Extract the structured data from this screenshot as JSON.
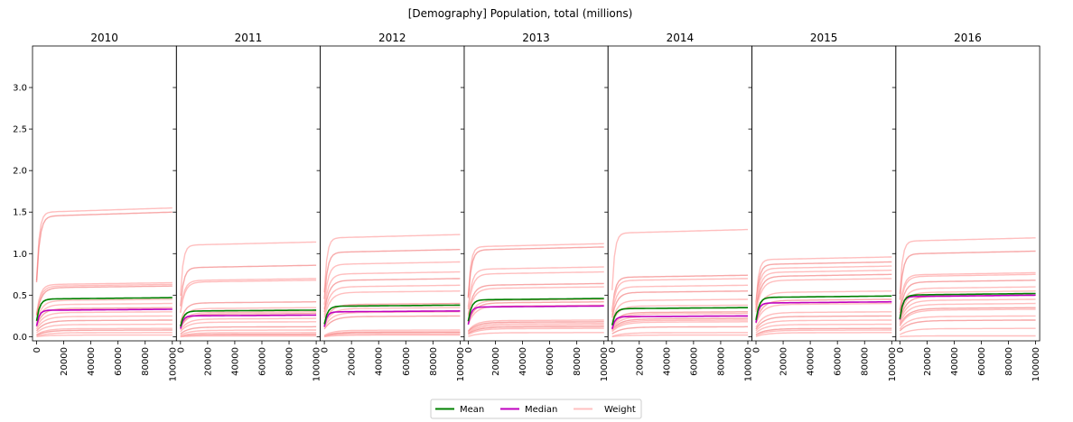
{
  "chart_data": {
    "type": "line",
    "title": "[Demography] Population, total (millions)",
    "panels": [
      "2010",
      "2011",
      "2012",
      "2013",
      "2014",
      "2015",
      "2016"
    ],
    "x_ticks": [
      "0",
      "20000",
      "40000",
      "60000",
      "80000",
      "100000"
    ],
    "y_ticks": [
      "0.0",
      "0.5",
      "1.0",
      "1.5",
      "2.0",
      "2.5",
      "3.0"
    ],
    "xlim": [
      -3000,
      103000
    ],
    "ylim": [
      -0.05,
      3.5
    ],
    "colors": {
      "mean": "#008000",
      "median": "#bf00bf",
      "weight": "#ffb3b3",
      "weight_dark": "#f06060"
    },
    "legend": [
      {
        "label": "Mean",
        "color": "#008000"
      },
      {
        "label": "Median",
        "color": "#bf00bf"
      },
      {
        "label": "Weight",
        "color": "#ffc0c0"
      }
    ],
    "legend_position": "bottom-center",
    "x_range": [
      0,
      100000
    ],
    "series": [
      {
        "panel": "2010",
        "mean": 0.47,
        "median": 0.33,
        "weights": [
          1.55,
          1.5,
          0.65,
          0.63,
          0.61,
          0.45,
          0.4,
          0.35,
          0.3,
          0.25,
          0.2,
          0.15,
          0.1,
          0.08,
          0.05,
          0.02
        ]
      },
      {
        "panel": "2011",
        "mean": 0.32,
        "median": 0.26,
        "weights": [
          1.14,
          0.86,
          0.7,
          0.68,
          0.42,
          0.35,
          0.3,
          0.28,
          0.22,
          0.18,
          0.12,
          0.08,
          0.05,
          0.03,
          0.02,
          0.01
        ]
      },
      {
        "panel": "2012",
        "mean": 0.38,
        "median": 0.31,
        "weights": [
          1.23,
          1.05,
          0.9,
          0.78,
          0.7,
          0.62,
          0.55,
          0.4,
          0.35,
          0.3,
          0.25,
          0.08,
          0.06,
          0.05,
          0.03,
          0.02
        ]
      },
      {
        "panel": "2013",
        "mean": 0.46,
        "median": 0.37,
        "weights": [
          1.12,
          1.08,
          0.84,
          0.78,
          0.64,
          0.6,
          0.45,
          0.42,
          0.38,
          0.2,
          0.18,
          0.16,
          0.14,
          0.12,
          0.1,
          0.05
        ]
      },
      {
        "panel": "2014",
        "mean": 0.35,
        "median": 0.25,
        "weights": [
          1.29,
          0.74,
          0.7,
          0.62,
          0.55,
          0.45,
          0.38,
          0.3,
          0.28,
          0.25,
          0.22,
          0.2,
          0.18,
          0.12,
          0.05,
          0.02
        ]
      },
      {
        "panel": "2015",
        "mean": 0.49,
        "median": 0.42,
        "weights": [
          0.96,
          0.9,
          0.85,
          0.8,
          0.75,
          0.7,
          0.55,
          0.45,
          0.4,
          0.3,
          0.25,
          0.2,
          0.15,
          0.1,
          0.08,
          0.05
        ]
      },
      {
        "panel": "2016",
        "mean": 0.52,
        "median": 0.5,
        "weights": [
          1.19,
          1.03,
          0.77,
          0.75,
          0.68,
          0.6,
          0.55,
          0.5,
          0.45,
          0.4,
          0.35,
          0.33,
          0.25,
          0.2,
          0.1,
          0.01
        ]
      }
    ]
  }
}
